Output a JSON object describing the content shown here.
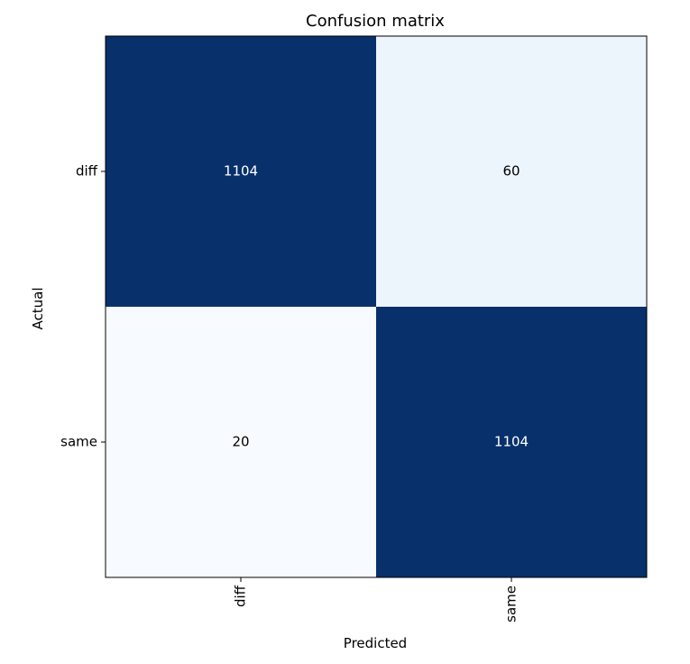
{
  "chart_data": {
    "type": "heatmap",
    "title": "Confusion matrix",
    "xlabel": "Predicted",
    "ylabel": "Actual",
    "x_categories": [
      "diff",
      "same"
    ],
    "y_categories": [
      "diff",
      "same"
    ],
    "values": [
      [
        1104,
        60
      ],
      [
        20,
        1104
      ]
    ],
    "colormap": {
      "low": "#f7fbff",
      "mid": "#6baed6",
      "high": "#08306b"
    },
    "text_color_dark_cell": "#ffffff",
    "text_color_light_cell": "#000000",
    "grid": false
  }
}
